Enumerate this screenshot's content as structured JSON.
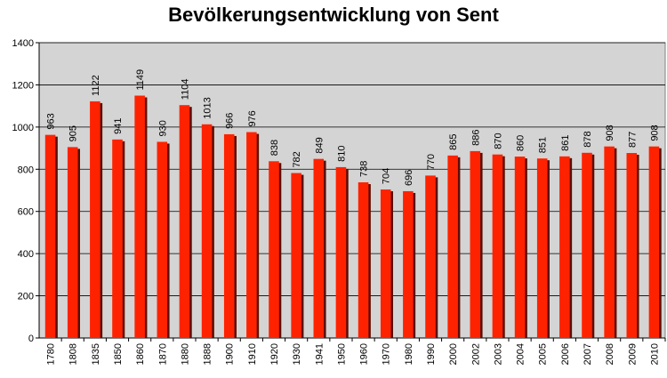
{
  "chart_data": {
    "type": "bar",
    "title": "Bevölkerungsentwicklung von Sent",
    "xlabel": "",
    "ylabel": "",
    "ylim": [
      0,
      1400
    ],
    "yticks": [
      0,
      200,
      400,
      600,
      800,
      1000,
      1200,
      1400
    ],
    "grid": true,
    "legend": "none",
    "colors": {
      "bar": "#ff2200",
      "shadow": "#5a0d00",
      "plot_bg": "#d4d4d4",
      "grid": "#000000"
    },
    "categories": [
      "1780",
      "1808",
      "1835",
      "1850",
      "1860",
      "1870",
      "1880",
      "1888",
      "1900",
      "1910",
      "1920",
      "1930",
      "1941",
      "1950",
      "1960",
      "1970",
      "1980",
      "1990",
      "2000",
      "2002",
      "2003",
      "2004",
      "2005",
      "2006",
      "2007",
      "2008",
      "2009",
      "2010"
    ],
    "values": [
      963,
      905,
      1122,
      941,
      1149,
      930,
      1104,
      1013,
      966,
      976,
      838,
      782,
      849,
      810,
      738,
      704,
      696,
      770,
      865,
      886,
      870,
      860,
      851,
      861,
      878,
      908,
      877,
      908
    ]
  }
}
